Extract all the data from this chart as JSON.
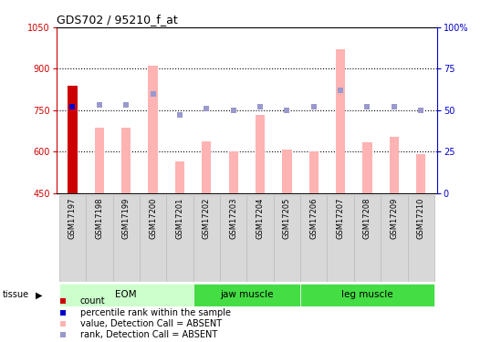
{
  "title": "GDS702 / 95210_f_at",
  "samples": [
    "GSM17197",
    "GSM17198",
    "GSM17199",
    "GSM17200",
    "GSM17201",
    "GSM17202",
    "GSM17203",
    "GSM17204",
    "GSM17205",
    "GSM17206",
    "GSM17207",
    "GSM17208",
    "GSM17209",
    "GSM17210"
  ],
  "pink_bar_values": [
    840,
    688,
    688,
    912,
    565,
    638,
    602,
    732,
    607,
    600,
    970,
    635,
    655,
    590
  ],
  "rank_dots_pct": [
    52,
    53,
    53,
    60,
    47,
    51,
    50,
    52,
    50,
    52,
    62,
    52,
    52,
    50
  ],
  "ylim_left": [
    450,
    1050
  ],
  "ylim_right": [
    0,
    100
  ],
  "yticks_left": [
    450,
    600,
    750,
    900,
    1050
  ],
  "yticks_right": [
    0,
    25,
    50,
    75,
    100
  ],
  "bar_color_pink": "#ffb3b3",
  "bar_color_red": "#cc0000",
  "dot_color_blue": "#0000cc",
  "dot_color_purple": "#9999cc",
  "left_axis_color": "#cc0000",
  "right_axis_color": "#0000cc",
  "group_defs": [
    {
      "label": "EOM",
      "start": 0,
      "end": 4,
      "color": "#ccffcc"
    },
    {
      "label": "jaw muscle",
      "start": 5,
      "end": 8,
      "color": "#44dd44"
    },
    {
      "label": "leg muscle",
      "start": 9,
      "end": 13,
      "color": "#44dd44"
    }
  ],
  "legend_items": [
    {
      "color": "#cc0000",
      "label": "count"
    },
    {
      "color": "#0000cc",
      "label": "percentile rank within the sample"
    },
    {
      "color": "#ffb3b3",
      "label": "value, Detection Call = ABSENT"
    },
    {
      "color": "#9999cc",
      "label": "rank, Detection Call = ABSENT"
    }
  ],
  "bar_width": 0.35,
  "grid_lines": [
    600,
    750,
    900
  ]
}
